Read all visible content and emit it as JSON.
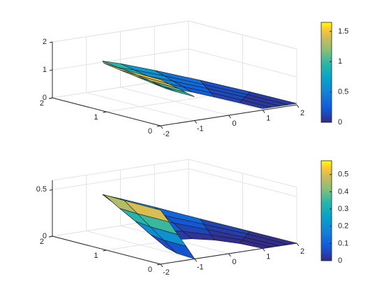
{
  "chart_data": [
    {
      "type": "surface",
      "colormap": "parula",
      "r": [
        1,
        1.25,
        1.5,
        1.75,
        2
      ],
      "theta_deg": [
        0,
        22.5,
        45,
        67.5,
        90,
        112.5,
        135,
        157.5,
        180
      ],
      "z": [
        [
          0.05,
          0.08,
          0.17,
          0.3,
          0.45,
          0.6,
          0.73,
          0.82,
          0.85
        ],
        [
          0.05,
          0.09,
          0.2,
          0.36,
          0.55,
          0.74,
          0.9,
          1.01,
          1.05
        ],
        [
          0.05,
          0.1,
          0.23,
          0.42,
          0.65,
          0.88,
          1.07,
          1.2,
          1.25
        ],
        [
          0.05,
          0.1,
          0.25,
          0.48,
          0.75,
          1.02,
          1.24,
          1.4,
          1.45
        ],
        [
          0.05,
          0.11,
          0.28,
          0.54,
          0.85,
          1.16,
          1.42,
          1.59,
          1.65
        ]
      ],
      "xlim": [
        -2,
        2
      ],
      "ylim": [
        0,
        2
      ],
      "zlim": [
        0,
        2
      ],
      "xticks": [
        -2,
        -1,
        0,
        1,
        2
      ],
      "yticks": [
        0,
        1,
        2
      ],
      "zticks": [
        0,
        1,
        2
      ],
      "clim": [
        0,
        1.65
      ],
      "cticks": [
        0,
        0.5,
        1,
        1.5
      ],
      "grid": true
    },
    {
      "type": "surface",
      "colormap": "parula",
      "r": [
        1,
        1.25,
        1.5,
        1.75,
        2
      ],
      "theta_deg": [
        0,
        22.5,
        45,
        67.5,
        90,
        112.5,
        135,
        157.5,
        180
      ],
      "z": [
        [
          0,
          0,
          0,
          0,
          0,
          0,
          0,
          0,
          0
        ],
        [
          0,
          0.01,
          0.02,
          0.04,
          0.07,
          0.1,
          0.12,
          0.14,
          0.15
        ],
        [
          0,
          0.01,
          0.04,
          0.09,
          0.15,
          0.2,
          0.25,
          0.28,
          0.29
        ],
        [
          0,
          0.02,
          0.06,
          0.13,
          0.22,
          0.3,
          0.37,
          0.42,
          0.44
        ],
        [
          0,
          0.02,
          0.08,
          0.18,
          0.29,
          0.4,
          0.5,
          0.56,
          0.58
        ]
      ],
      "xlim": [
        -2,
        2
      ],
      "ylim": [
        0,
        2
      ],
      "zlim": [
        0,
        0.6
      ],
      "xticks": [
        -2,
        -1,
        0,
        1,
        2
      ],
      "yticks": [
        0,
        1,
        2
      ],
      "zticks": [
        0,
        0.5
      ],
      "clim": [
        0,
        0.58
      ],
      "cticks": [
        0,
        0.1,
        0.2,
        0.3,
        0.4,
        0.5
      ],
      "grid": true
    }
  ]
}
